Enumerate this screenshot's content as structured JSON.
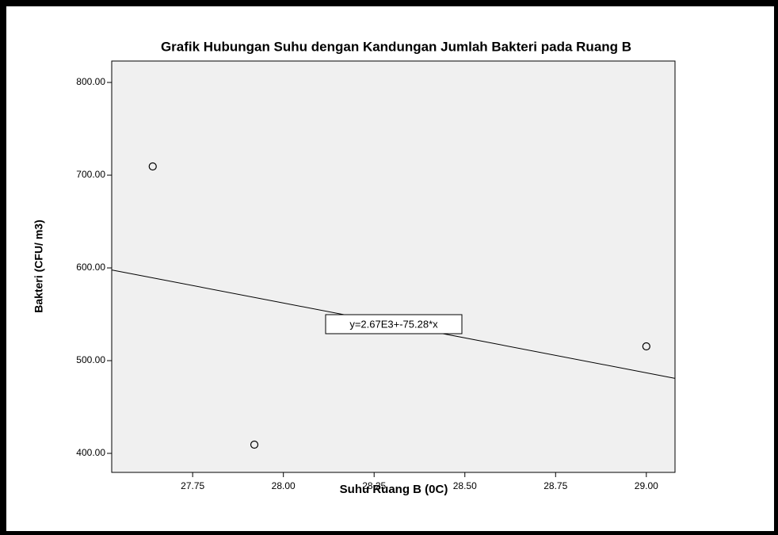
{
  "chart_data": {
    "type": "scatter",
    "title": "Grafik Hubungan Suhu dengan Kandungan Jumlah Bakteri pada Ruang B",
    "x_label": "Suhu Ruang B (0C)",
    "y_label": "Bakteri (CFU/ m3)",
    "x": [
      27.64,
      27.92,
      29.0
    ],
    "values": [
      709.4,
      409.4,
      515.4
    ],
    "xlim": [
      27.527,
      29.079
    ],
    "ylim": [
      379.5,
      823.1
    ],
    "xticks": [
      27.75,
      {
        "value": 28,
        "label": "28.00"
      },
      28.25,
      {
        "value": 28.5,
        "label": "28.50"
      },
      28.75,
      {
        "value": 29,
        "label": "29.00"
      }
    ],
    "yticks": [
      {
        "value": 400,
        "label": "400.00"
      },
      {
        "value": 500,
        "label": "500.00"
      },
      {
        "value": 600,
        "label": "600.00"
      },
      {
        "value": 700,
        "label": "700.00"
      },
      {
        "value": 800,
        "label": "800.00"
      }
    ],
    "fit_line": {
      "label": "y=2.67E3+-75.28*x",
      "intercept": 2670,
      "slope": -75.28
    },
    "grid": false
  }
}
